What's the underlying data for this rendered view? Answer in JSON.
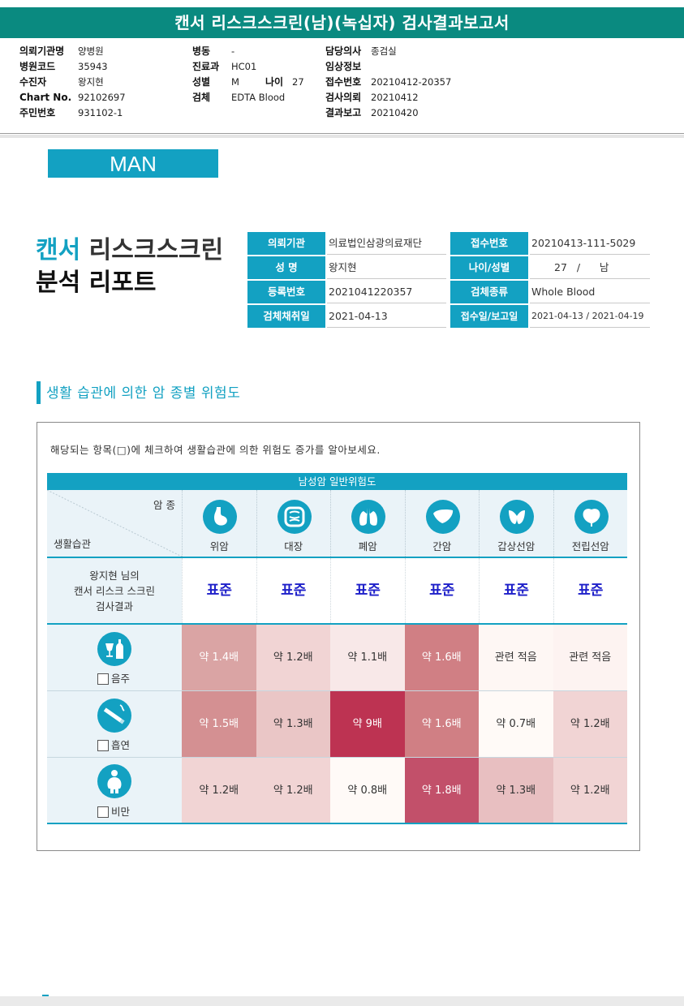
{
  "title": "캔서 리스크스크린(남)(녹십자) 검사결과보고서",
  "header": {
    "col1": [
      {
        "label": "의뢰기관명",
        "value": "양병원"
      },
      {
        "label": "병원코드",
        "value": "35943"
      },
      {
        "label": "수진자",
        "value": "왕지현"
      },
      {
        "label": "Chart No.",
        "value": "92102697"
      },
      {
        "label": "주민번호",
        "value": "931102-1"
      }
    ],
    "col2": [
      {
        "label": "병동",
        "value": "-"
      },
      {
        "label": "진료과",
        "value": "HC01"
      },
      {
        "label": "성별",
        "value": "M"
      },
      {
        "label": "검체",
        "value": "EDTA Blood"
      }
    ],
    "age": {
      "label": "나이",
      "value": "27"
    },
    "col3": [
      {
        "label": "담당의사",
        "value": "종검실"
      },
      {
        "label": "임상정보",
        "value": ""
      },
      {
        "label": "접수번호",
        "value": "20210412-20357"
      },
      {
        "label": "검사의뢰",
        "value": "20210412"
      },
      {
        "label": "결과보고",
        "value": "20210420"
      }
    ]
  },
  "man_label": "MAN",
  "report_title": {
    "accent": "캔서",
    "rest": " 리스크스크린",
    "line2": "분석 리포트"
  },
  "info": {
    "left": [
      {
        "label": "의뢰기관",
        "value": "의료법인삼광의료재단"
      },
      {
        "label": "성 명",
        "value": "왕지현"
      },
      {
        "label": "등록번호",
        "value": "2021041220357"
      },
      {
        "label": "검체채취일",
        "value": "2021-04-13"
      }
    ],
    "right": [
      {
        "label": "접수번호",
        "value": "20210413-111-5029"
      },
      {
        "label": "나이/성별",
        "value": "27   /      남"
      },
      {
        "label": "검체종류",
        "value": "Whole Blood"
      },
      {
        "label": "접수일/보고일",
        "value": "2021-04-13 / 2021-04-19"
      }
    ]
  },
  "section_title": "생활 습관에 의한 암 종별 위험도",
  "note": "해당되는 항목(□)에 체크하여 생활습관에 의한 위험도 증가를 알아보세요.",
  "table": {
    "header": "남성암 일반위험도",
    "corner_top": "암 종",
    "corner_bottom": "생활습관",
    "cancers": [
      {
        "label": "위암",
        "icon": "stomach-icon"
      },
      {
        "label": "대장",
        "icon": "colon-icon"
      },
      {
        "label": "폐암",
        "icon": "lung-icon"
      },
      {
        "label": "간암",
        "icon": "liver-icon"
      },
      {
        "label": "갑상선암",
        "icon": "thyroid-icon"
      },
      {
        "label": "전립선암",
        "icon": "prostate-icon"
      }
    ],
    "result_label": [
      "왕지현 님의",
      "캔서 리스크 스크린",
      "검사결과"
    ],
    "results": [
      "표준",
      "표준",
      "표준",
      "표준",
      "표준",
      "표준"
    ],
    "habits": [
      {
        "label": "음주",
        "icon": "drink-icon",
        "cells": [
          "약 1.4배",
          "약 1.2배",
          "약 1.1배",
          "약 1.6배",
          "관련 적음",
          "관련 적음"
        ],
        "colors": [
          "#daa4a4",
          "#f1d4d4",
          "#f8e8e8",
          "#d07f84",
          "#fef7f4",
          "#fdf3f1"
        ]
      },
      {
        "label": "흡연",
        "icon": "smoking-icon",
        "cells": [
          "약 1.5배",
          "약 1.3배",
          "약 9배",
          "약 1.6배",
          "약 0.7배",
          "약 1.2배"
        ],
        "colors": [
          "#d49092",
          "#eac6c6",
          "#bd3352",
          "#d07f84",
          "#fffaf7",
          "#f1d4d4"
        ]
      },
      {
        "label": "비만",
        "icon": "obesity-icon",
        "cells": [
          "약 1.2배",
          "약 1.2배",
          "약 0.8배",
          "약 1.8배",
          "약 1.3배",
          "약 1.2배"
        ],
        "colors": [
          "#f1d4d4",
          "#f1d4d4",
          "#fffaf7",
          "#c2506a",
          "#e8bfc1",
          "#f1d4d4"
        ]
      }
    ],
    "light_text_colors": [
      "#bd3352",
      "#c2506a",
      "#d07f84",
      "#d49092",
      "#daa4a4"
    ]
  }
}
